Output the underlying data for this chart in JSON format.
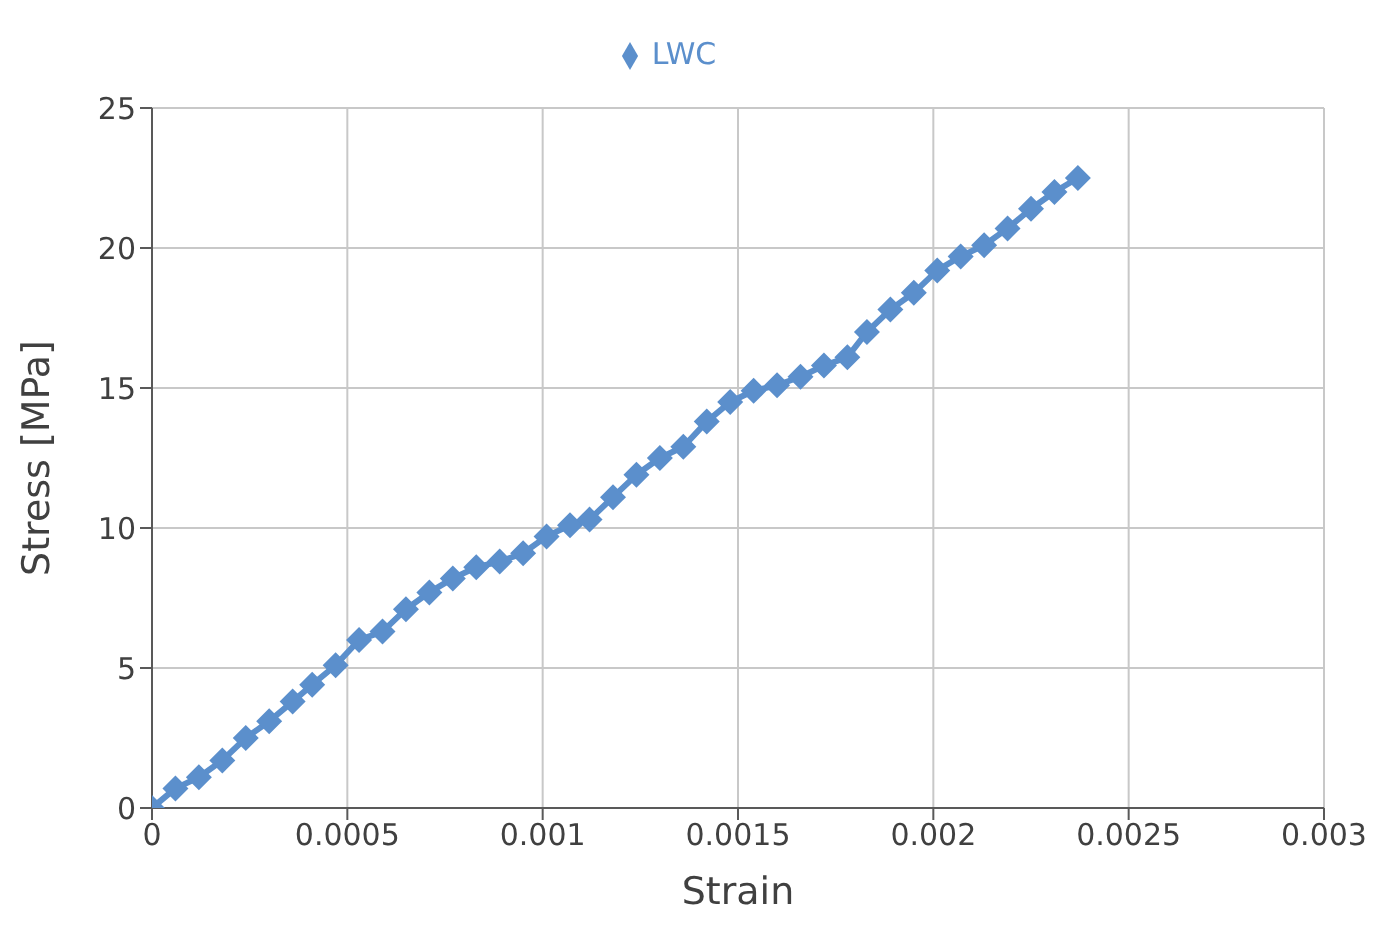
{
  "chart_data": {
    "type": "line",
    "xlabel": "Strain",
    "ylabel": "Stress [MPa]",
    "x": [
      0,
      6e-05,
      0.00012,
      0.00018,
      0.00024,
      0.0003,
      0.00036,
      0.00041,
      0.00047,
      0.00053,
      0.00059,
      0.00065,
      0.00071,
      0.00077,
      0.00083,
      0.00089,
      0.00095,
      0.00101,
      0.00107,
      0.00112,
      0.00118,
      0.00124,
      0.0013,
      0.00136,
      0.00142,
      0.00148,
      0.00154,
      0.0016,
      0.00166,
      0.00172,
      0.00178,
      0.00183,
      0.00189,
      0.00195,
      0.00201,
      0.00207,
      0.00213,
      0.00219,
      0.00225,
      0.00231,
      0.00237
    ],
    "series": [
      {
        "name": "LWC",
        "color": "#5b8fcc",
        "values": [
          0,
          0.7,
          1.1,
          1.7,
          2.5,
          3.1,
          3.8,
          4.4,
          5.1,
          6.0,
          6.3,
          7.1,
          7.7,
          8.2,
          8.6,
          8.8,
          9.1,
          9.7,
          10.1,
          10.3,
          11.1,
          11.9,
          12.5,
          12.9,
          13.8,
          14.5,
          14.9,
          15.1,
          15.4,
          15.8,
          16.1,
          17.0,
          17.8,
          18.4,
          19.2,
          19.7,
          20.1,
          20.7,
          21.4,
          22.0,
          22.5
        ]
      }
    ],
    "xlim": [
      0,
      0.003
    ],
    "xticks": [
      0,
      0.0005,
      0.001,
      0.0015,
      0.002,
      0.0025,
      0.003
    ],
    "ylim": [
      0,
      25
    ],
    "yticks": [
      0,
      5,
      10,
      15,
      20,
      25
    ],
    "grid": true,
    "legend": "top",
    "marker": "diamond",
    "line_style": "solid"
  }
}
